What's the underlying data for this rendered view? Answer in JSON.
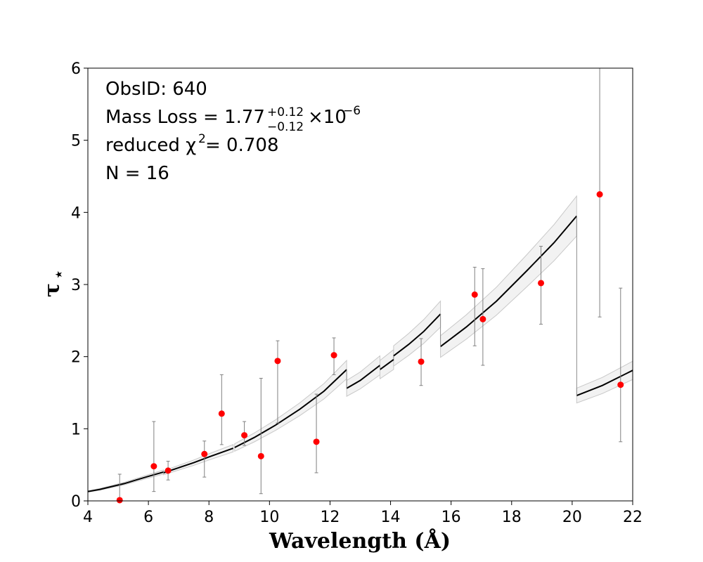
{
  "chart_data": {
    "type": "scatter",
    "xlabel": "Wavelength (Å)",
    "ylabel_symbol": "τ",
    "ylabel_subscript": "⋆",
    "xlim": [
      4,
      22
    ],
    "ylim": [
      0,
      6
    ],
    "xticks": [
      "4",
      "6",
      "8",
      "10",
      "12",
      "14",
      "16",
      "18",
      "20",
      "22"
    ],
    "yticks": [
      "0",
      "1",
      "2",
      "3",
      "4",
      "5",
      "6"
    ],
    "annotations": {
      "obsid": "ObsID: 640",
      "mass_loss_prefix": "Mass Loss = 1.77",
      "mass_loss_upper": "+0.12",
      "mass_loss_lower": "−0.12",
      "mass_loss_times": "×10",
      "mass_loss_exp": "−6",
      "chi_prefix": "reduced χ",
      "chi_exp": "2",
      "chi_value": " = 0.708",
      "n": "N = 16"
    },
    "colors": {
      "points": "#ff0000",
      "model_line": "#000000",
      "model_band": "#d9d9d9",
      "errorbars": "#808080"
    },
    "points": [
      {
        "x": 5.05,
        "y": 0.01,
        "ylo": 0.0,
        "yhi": 0.37
      },
      {
        "x": 6.18,
        "y": 0.48,
        "ylo": 0.13,
        "yhi": 1.1
      },
      {
        "x": 6.65,
        "y": 0.42,
        "ylo": 0.29,
        "yhi": 0.55
      },
      {
        "x": 7.85,
        "y": 0.65,
        "ylo": 0.33,
        "yhi": 0.83
      },
      {
        "x": 8.42,
        "y": 1.21,
        "ylo": 0.78,
        "yhi": 1.75
      },
      {
        "x": 9.17,
        "y": 0.91,
        "ylo": 0.77,
        "yhi": 1.1
      },
      {
        "x": 9.72,
        "y": 0.62,
        "ylo": 0.1,
        "yhi": 1.7
      },
      {
        "x": 10.27,
        "y": 1.94,
        "ylo": 1.08,
        "yhi": 2.22
      },
      {
        "x": 11.55,
        "y": 0.82,
        "ylo": 0.39,
        "yhi": 1.48
      },
      {
        "x": 12.13,
        "y": 2.02,
        "ylo": 1.75,
        "yhi": 2.26
      },
      {
        "x": 15.01,
        "y": 1.93,
        "ylo": 1.6,
        "yhi": 2.25
      },
      {
        "x": 16.78,
        "y": 2.86,
        "ylo": 2.15,
        "yhi": 3.24
      },
      {
        "x": 17.05,
        "y": 2.52,
        "ylo": 1.88,
        "yhi": 3.22
      },
      {
        "x": 18.97,
        "y": 3.02,
        "ylo": 2.45,
        "yhi": 3.53
      },
      {
        "x": 20.91,
        "y": 4.25,
        "ylo": 2.55,
        "yhi": 6.0
      },
      {
        "x": 21.6,
        "y": 1.61,
        "ylo": 0.82,
        "yhi": 2.95
      }
    ],
    "model_segments": [
      {
        "x": [
          4.0,
          4.4,
          4.8,
          5.2,
          5.6,
          6.0,
          6.5
        ],
        "y": [
          0.13,
          0.16,
          0.2,
          0.24,
          0.29,
          0.34,
          0.4
        ]
      },
      {
        "x": [
          6.5,
          7.0,
          7.5,
          8.0,
          8.8
        ],
        "y": [
          0.39,
          0.46,
          0.53,
          0.61,
          0.73
        ]
      },
      {
        "x": [
          8.85,
          9.5,
          10.2,
          11.0,
          11.8,
          12.55
        ],
        "y": [
          0.74,
          0.88,
          1.05,
          1.27,
          1.52,
          1.82
        ]
      },
      {
        "x": [
          12.55,
          13.0,
          13.65
        ],
        "y": [
          1.56,
          1.67,
          1.88
        ]
      },
      {
        "x": [
          13.65,
          14.1
        ],
        "y": [
          1.82,
          1.96
        ]
      },
      {
        "x": [
          14.1,
          14.6,
          15.1,
          15.65
        ],
        "y": [
          2.01,
          2.17,
          2.35,
          2.59
        ]
      },
      {
        "x": [
          15.65,
          16.5,
          17.5,
          18.5,
          19.4,
          20.15
        ],
        "y": [
          2.14,
          2.41,
          2.77,
          3.19,
          3.58,
          3.95
        ]
      },
      {
        "x": [
          20.15,
          21.0,
          22.0
        ],
        "y": [
          1.46,
          1.6,
          1.81
        ]
      }
    ],
    "model_band_halfwidth_fraction": 0.07
  }
}
